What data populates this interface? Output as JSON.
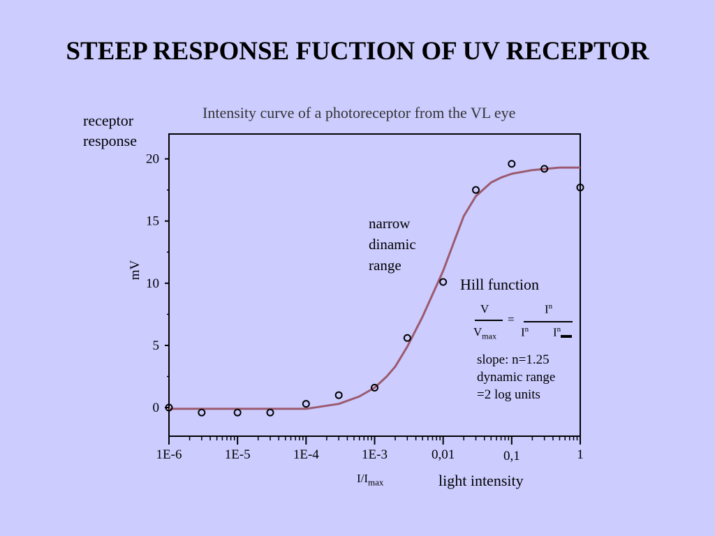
{
  "slide": {
    "title": "STEEP RESPONSE FUCTION OF UV RECEPTOR"
  },
  "chart_data": {
    "type": "scatter",
    "title": "Intensity curve of a photoreceptor from the VL eye",
    "ylabel": "mV",
    "ylabel_description": "receptor response",
    "xlabel": "I/I",
    "xlabel_sub": "max",
    "xlabel_description": "light intensity",
    "x_scale": "log",
    "xlim": [
      1e-06,
      1
    ],
    "ylim": [
      -2.3,
      22
    ],
    "x_ticks": [
      {
        "value": 1e-06,
        "label": "1E-6"
      },
      {
        "value": 1e-05,
        "label": "1E-5"
      },
      {
        "value": 0.0001,
        "label": "1E-4"
      },
      {
        "value": 0.001,
        "label": "1E-3"
      },
      {
        "value": 0.01,
        "label": "0,01"
      },
      {
        "value": 0.1,
        "label": "0,1"
      },
      {
        "value": 1,
        "label": "1"
      }
    ],
    "y_ticks": [
      {
        "value": 0,
        "label": "0"
      },
      {
        "value": 5,
        "label": "5"
      },
      {
        "value": 10,
        "label": "10"
      },
      {
        "value": 15,
        "label": "15"
      },
      {
        "value": 20,
        "label": "20"
      }
    ],
    "grid": false,
    "series": [
      {
        "kind": "points",
        "marker": "open-circle",
        "color": "#000000",
        "x": [
          1e-06,
          3e-06,
          1e-05,
          3e-05,
          0.0001,
          0.0003,
          0.001,
          0.003,
          0.01,
          0.03,
          0.1,
          0.3,
          1
        ],
        "y": [
          0,
          -0.4,
          -0.4,
          -0.4,
          0.3,
          1.0,
          1.6,
          5.6,
          10.1,
          17.5,
          19.6,
          19.2,
          17.7
        ]
      },
      {
        "name": "Hill function",
        "kind": "line",
        "color": "#9b5a6e",
        "x": [
          1e-06,
          1e-05,
          0.0001,
          0.0003,
          0.0006,
          0.001,
          0.0015,
          0.002,
          0.003,
          0.005,
          0.007,
          0.01,
          0.015,
          0.02,
          0.03,
          0.05,
          0.07,
          0.1,
          0.2,
          0.5,
          1
        ],
        "y": [
          -0.1,
          -0.1,
          -0.1,
          0.3,
          0.9,
          1.6,
          2.5,
          3.3,
          4.9,
          7.3,
          9.1,
          11.0,
          13.6,
          15.4,
          17.0,
          18.1,
          18.5,
          18.8,
          19.1,
          19.3,
          19.3
        ]
      }
    ],
    "annotations": {
      "narrow_range": [
        "narrow",
        "dinamic",
        "range"
      ],
      "hill_label": "Hill function",
      "formula": {
        "lhs_num": "V",
        "lhs_den": "V",
        "lhs_den_sub": "max",
        "equals": "=",
        "rhs_num": "I",
        "rhs_num_sup": "n",
        "rhs_den_a": "I",
        "rhs_den_a_sup": "n",
        "rhs_den_b": "I",
        "rhs_den_b_sup": "n"
      },
      "slope": [
        "slope: n=1.25",
        "dynamic range",
        "=2 log units"
      ]
    }
  }
}
